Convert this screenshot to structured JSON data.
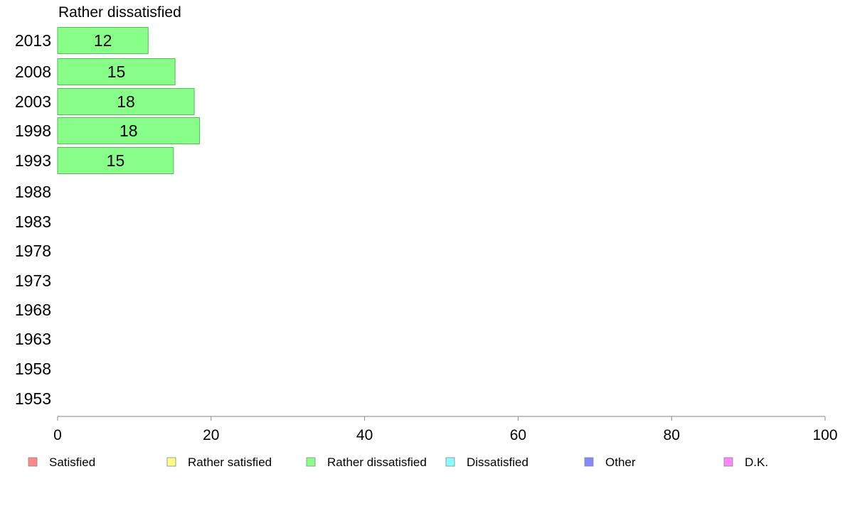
{
  "chart_data": {
    "type": "bar",
    "orientation": "horizontal",
    "title": "Rather dissatisfied",
    "categories": [
      "2013",
      "2008",
      "2003",
      "1998",
      "1993",
      "1988",
      "1983",
      "1978",
      "1973",
      "1968",
      "1963",
      "1958",
      "1953"
    ],
    "values": [
      12,
      15,
      18,
      18,
      15,
      null,
      null,
      null,
      null,
      null,
      null,
      null,
      null
    ],
    "data_labels": [
      "12",
      "15",
      "18",
      "18",
      "15",
      "",
      "",
      "",
      "",
      "",
      "",
      "",
      ""
    ],
    "bar_value_estimates": [
      11.8,
      15.3,
      17.8,
      18.5,
      15.1,
      null,
      null,
      null,
      null,
      null,
      null,
      null,
      null
    ],
    "xlim": [
      0,
      100
    ],
    "x_ticks": [
      "0",
      "20",
      "40",
      "60",
      "80",
      "100"
    ],
    "grid": false,
    "bar_color": "#88ff88",
    "bar_border_color": "#55bb55",
    "legend_position": "bottom",
    "legend": [
      {
        "label": "Satisfied",
        "color": "#ff8888"
      },
      {
        "label": "Rather satisfied",
        "color": "#ffff88"
      },
      {
        "label": "Rather dissatisfied",
        "color": "#88ff88"
      },
      {
        "label": "Dissatisfied",
        "color": "#88ffff"
      },
      {
        "label": "Other",
        "color": "#8888ff"
      },
      {
        "label": "D.K.",
        "color": "#ff88ff"
      }
    ]
  }
}
